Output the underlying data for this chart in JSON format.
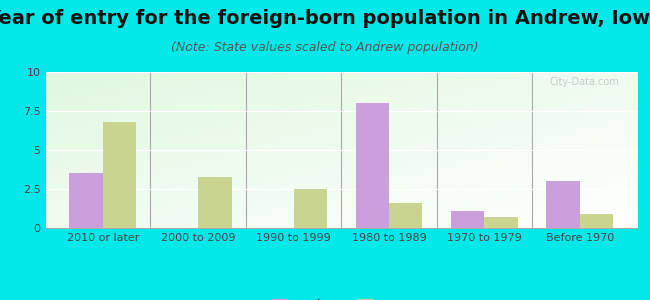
{
  "title": "Year of entry for the foreign-born population in Andrew, Iowa",
  "subtitle": "(Note: State values scaled to Andrew population)",
  "categories": [
    "2010 or later",
    "2000 to 2009",
    "1990 to 1999",
    "1980 to 1989",
    "1970 to 1979",
    "Before 1970"
  ],
  "andrew_values": [
    3.5,
    0,
    0,
    8.0,
    1.1,
    3.0
  ],
  "iowa_values": [
    6.8,
    3.3,
    2.5,
    1.6,
    0.7,
    0.9
  ],
  "andrew_color": "#c9a0dc",
  "iowa_color": "#c8d490",
  "background_color": "#00e8e8",
  "ylim": [
    0,
    10
  ],
  "yticks": [
    0,
    2.5,
    5,
    7.5,
    10
  ],
  "legend_labels": [
    "Andrew",
    "Iowa"
  ],
  "bar_width": 0.35,
  "title_fontsize": 14,
  "subtitle_fontsize": 9
}
